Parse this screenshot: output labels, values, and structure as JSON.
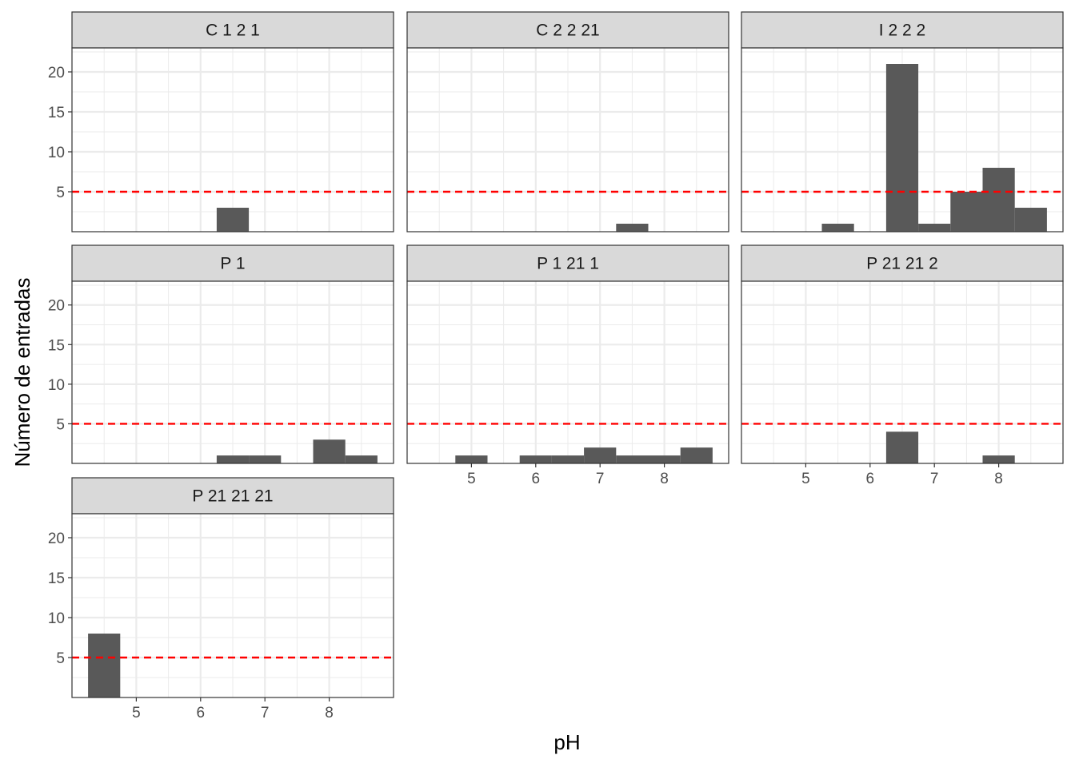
{
  "chart_data": {
    "type": "bar",
    "xlabel": "pH",
    "ylabel": "Número de entradas",
    "xlim": [
      4.0,
      9.0
    ],
    "ylim": [
      0,
      23
    ],
    "x_ticks": [
      "5",
      "6",
      "7",
      "8"
    ],
    "y_ticks": [
      "5",
      "10",
      "15",
      "20"
    ],
    "bin_width": 0.5,
    "reference_line": {
      "y": 5,
      "style": "dashed",
      "color": "#ff0000"
    },
    "grid": true,
    "colors": {
      "bar": "#595959",
      "strip": "#d9d9d9",
      "grid": "#ebebeb",
      "panel_border": "#333333"
    },
    "facets": [
      {
        "name": "C 1 2 1",
        "bars": [
          {
            "x": 6.5,
            "value": 3
          }
        ]
      },
      {
        "name": "C 2 2 21",
        "bars": [
          {
            "x": 7.5,
            "value": 1
          }
        ]
      },
      {
        "name": "I 2 2 2",
        "bars": [
          {
            "x": 5.5,
            "value": 1
          },
          {
            "x": 6.5,
            "value": 21
          },
          {
            "x": 7.0,
            "value": 1
          },
          {
            "x": 7.5,
            "value": 5
          },
          {
            "x": 8.0,
            "value": 8
          },
          {
            "x": 8.5,
            "value": 3
          }
        ]
      },
      {
        "name": "P 1",
        "bars": [
          {
            "x": 6.5,
            "value": 1
          },
          {
            "x": 7.0,
            "value": 1
          },
          {
            "x": 8.0,
            "value": 3
          },
          {
            "x": 8.5,
            "value": 1
          }
        ]
      },
      {
        "name": "P 1 21 1",
        "bars": [
          {
            "x": 5.0,
            "value": 1
          },
          {
            "x": 6.0,
            "value": 1
          },
          {
            "x": 6.5,
            "value": 1
          },
          {
            "x": 7.0,
            "value": 2
          },
          {
            "x": 7.5,
            "value": 1
          },
          {
            "x": 8.0,
            "value": 1
          },
          {
            "x": 8.5,
            "value": 2
          }
        ]
      },
      {
        "name": "P 21 21 2",
        "bars": [
          {
            "x": 6.5,
            "value": 4
          },
          {
            "x": 8.0,
            "value": 1
          }
        ]
      },
      {
        "name": "P 21 21 21",
        "bars": [
          {
            "x": 4.5,
            "value": 8
          }
        ]
      }
    ]
  }
}
